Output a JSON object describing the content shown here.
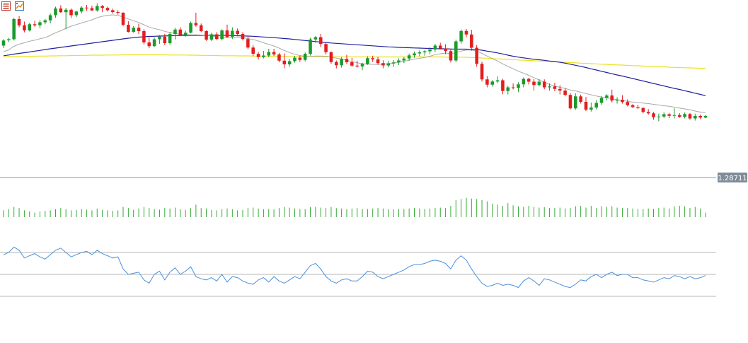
{
  "toolbar": {
    "items": [
      {
        "icon": "list-view-icon",
        "color": "#c0392b"
      },
      {
        "icon": "chart-window-icon",
        "color": "#2d6fb5"
      }
    ]
  },
  "colors": {
    "bull": "#1b9a2c",
    "bear": "#e31d1d",
    "ma_fast": "#a8a8a8",
    "ma_mid": "#1f1fa0",
    "ma_slow": "#ece01a",
    "volume": "#33aa33",
    "rsi": "#4a90d9",
    "grid": "#b5b5b5",
    "price_tag_bg": "#7f8c99"
  },
  "chart_data": {
    "type": "candlestick",
    "current_price": "1.28711",
    "candles": [
      [
        0.742,
        0.778,
        0.728,
        0.771
      ],
      [
        0.772,
        0.786,
        0.762,
        0.778
      ],
      [
        0.778,
        0.9,
        0.771,
        0.892
      ],
      [
        0.892,
        0.908,
        0.846,
        0.857
      ],
      [
        0.857,
        0.878,
        0.817,
        0.828
      ],
      [
        0.828,
        0.871,
        0.822,
        0.863
      ],
      [
        0.863,
        0.883,
        0.849,
        0.857
      ],
      [
        0.857,
        0.887,
        0.839,
        0.874
      ],
      [
        0.874,
        0.892,
        0.863,
        0.885
      ],
      [
        0.885,
        0.925,
        0.868,
        0.914
      ],
      [
        0.914,
        0.962,
        0.9,
        0.952
      ],
      [
        0.952,
        0.97,
        0.928,
        0.931
      ],
      [
        0.931,
        0.956,
        0.834,
        0.945
      ],
      [
        0.945,
        0.952,
        0.899,
        0.914
      ],
      [
        0.914,
        0.938,
        0.903,
        0.935
      ],
      [
        0.935,
        0.966,
        0.924,
        0.957
      ],
      [
        0.957,
        0.972,
        0.938,
        0.954
      ],
      [
        0.954,
        0.968,
        0.938,
        0.941
      ],
      [
        0.941,
        0.981,
        0.934,
        0.966
      ],
      [
        0.966,
        0.972,
        0.931,
        0.955
      ],
      [
        0.955,
        0.962,
        0.935,
        0.942
      ],
      [
        0.942,
        0.951,
        0.923,
        0.932
      ],
      [
        0.932,
        0.942,
        0.917,
        0.928
      ],
      [
        0.928,
        0.931,
        0.852,
        0.86
      ],
      [
        0.86,
        0.88,
        0.816,
        0.82
      ],
      [
        0.82,
        0.852,
        0.815,
        0.843
      ],
      [
        0.843,
        0.866,
        0.807,
        0.824
      ],
      [
        0.824,
        0.835,
        0.749,
        0.76
      ],
      [
        0.76,
        0.787,
        0.727,
        0.739
      ],
      [
        0.739,
        0.788,
        0.734,
        0.778
      ],
      [
        0.778,
        0.802,
        0.752,
        0.793
      ],
      [
        0.793,
        0.809,
        0.745,
        0.756
      ],
      [
        0.756,
        0.819,
        0.747,
        0.808
      ],
      [
        0.808,
        0.842,
        0.777,
        0.833
      ],
      [
        0.833,
        0.846,
        0.798,
        0.802
      ],
      [
        0.802,
        0.827,
        0.791,
        0.815
      ],
      [
        0.815,
        0.878,
        0.811,
        0.87
      ],
      [
        0.87,
        0.928,
        0.849,
        0.857
      ],
      [
        0.857,
        0.867,
        0.818,
        0.824
      ],
      [
        0.824,
        0.828,
        0.769,
        0.776
      ],
      [
        0.776,
        0.815,
        0.768,
        0.806
      ],
      [
        0.806,
        0.818,
        0.773,
        0.779
      ],
      [
        0.779,
        0.834,
        0.771,
        0.828
      ],
      [
        0.828,
        0.861,
        0.784,
        0.791
      ],
      [
        0.791,
        0.846,
        0.779,
        0.826
      ],
      [
        0.826,
        0.839,
        0.795,
        0.808
      ],
      [
        0.808,
        0.818,
        0.771,
        0.779
      ],
      [
        0.779,
        0.799,
        0.721,
        0.731
      ],
      [
        0.731,
        0.745,
        0.682,
        0.696
      ],
      [
        0.696,
        0.706,
        0.663,
        0.677
      ],
      [
        0.677,
        0.712,
        0.67,
        0.686
      ],
      [
        0.686,
        0.724,
        0.676,
        0.706
      ],
      [
        0.706,
        0.724,
        0.684,
        0.692
      ],
      [
        0.692,
        0.701,
        0.648,
        0.657
      ],
      [
        0.657,
        0.698,
        0.614,
        0.636
      ],
      [
        0.636,
        0.667,
        0.622,
        0.654
      ],
      [
        0.654,
        0.684,
        0.645,
        0.674
      ],
      [
        0.674,
        0.685,
        0.65,
        0.661
      ],
      [
        0.661,
        0.703,
        0.652,
        0.696
      ],
      [
        0.696,
        0.786,
        0.686,
        0.777
      ],
      [
        0.777,
        0.796,
        0.758,
        0.79
      ],
      [
        0.79,
        0.808,
        0.733,
        0.751
      ],
      [
        0.751,
        0.76,
        0.692,
        0.705
      ],
      [
        0.705,
        0.709,
        0.64,
        0.649
      ],
      [
        0.649,
        0.658,
        0.613,
        0.631
      ],
      [
        0.631,
        0.677,
        0.618,
        0.667
      ],
      [
        0.667,
        0.69,
        0.637,
        0.648
      ],
      [
        0.648,
        0.672,
        0.621,
        0.629
      ],
      [
        0.629,
        0.657,
        0.618,
        0.624
      ],
      [
        0.624,
        0.645,
        0.603,
        0.638
      ],
      [
        0.638,
        0.682,
        0.633,
        0.671
      ],
      [
        0.671,
        0.685,
        0.649,
        0.664
      ],
      [
        0.664,
        0.678,
        0.635,
        0.643
      ],
      [
        0.643,
        0.659,
        0.614,
        0.63
      ],
      [
        0.63,
        0.656,
        0.619,
        0.641
      ],
      [
        0.641,
        0.66,
        0.621,
        0.647
      ],
      [
        0.647,
        0.67,
        0.632,
        0.658
      ],
      [
        0.658,
        0.678,
        0.643,
        0.669
      ],
      [
        0.669,
        0.697,
        0.656,
        0.687
      ],
      [
        0.687,
        0.709,
        0.673,
        0.698
      ],
      [
        0.698,
        0.715,
        0.681,
        0.704
      ],
      [
        0.704,
        0.716,
        0.685,
        0.71
      ],
      [
        0.71,
        0.733,
        0.693,
        0.72
      ],
      [
        0.72,
        0.752,
        0.706,
        0.742
      ],
      [
        0.742,
        0.758,
        0.72,
        0.726
      ],
      [
        0.726,
        0.75,
        0.693,
        0.711
      ],
      [
        0.711,
        0.725,
        0.647,
        0.658
      ],
      [
        0.658,
        0.776,
        0.648,
        0.766
      ],
      [
        0.766,
        0.834,
        0.753,
        0.825
      ],
      [
        0.825,
        0.836,
        0.79,
        0.805
      ],
      [
        0.805,
        0.831,
        0.713,
        0.73
      ],
      [
        0.73,
        0.745,
        0.622,
        0.639
      ],
      [
        0.639,
        0.651,
        0.539,
        0.551
      ],
      [
        0.551,
        0.57,
        0.506,
        0.521
      ],
      [
        0.521,
        0.547,
        0.51,
        0.539
      ],
      [
        0.539,
        0.568,
        0.53,
        0.546
      ],
      [
        0.546,
        0.555,
        0.467,
        0.485
      ],
      [
        0.485,
        0.515,
        0.466,
        0.506
      ],
      [
        0.506,
        0.528,
        0.494,
        0.503
      ],
      [
        0.503,
        0.535,
        0.479,
        0.523
      ],
      [
        0.523,
        0.562,
        0.506,
        0.554
      ],
      [
        0.554,
        0.56,
        0.522,
        0.538
      ],
      [
        0.538,
        0.552,
        0.488,
        0.519
      ],
      [
        0.519,
        0.552,
        0.511,
        0.538
      ],
      [
        0.538,
        0.551,
        0.495,
        0.506
      ],
      [
        0.506,
        0.528,
        0.488,
        0.511
      ],
      [
        0.511,
        0.532,
        0.484,
        0.497
      ],
      [
        0.497,
        0.518,
        0.466,
        0.488
      ],
      [
        0.488,
        0.502,
        0.455,
        0.463
      ],
      [
        0.463,
        0.474,
        0.381,
        0.387
      ],
      [
        0.387,
        0.472,
        0.379,
        0.455
      ],
      [
        0.455,
        0.465,
        0.414,
        0.424
      ],
      [
        0.424,
        0.451,
        0.371,
        0.38
      ],
      [
        0.38,
        0.42,
        0.369,
        0.392
      ],
      [
        0.392,
        0.434,
        0.381,
        0.418
      ],
      [
        0.418,
        0.457,
        0.407,
        0.446
      ],
      [
        0.446,
        0.467,
        0.432,
        0.46
      ],
      [
        0.46,
        0.493,
        0.421,
        0.431
      ],
      [
        0.431,
        0.45,
        0.414,
        0.436
      ],
      [
        0.436,
        0.462,
        0.414,
        0.423
      ],
      [
        0.423,
        0.438,
        0.398,
        0.405
      ],
      [
        0.405,
        0.411,
        0.389,
        0.394
      ],
      [
        0.394,
        0.408,
        0.383,
        0.389
      ],
      [
        0.389,
        0.394,
        0.359,
        0.367
      ],
      [
        0.367,
        0.383,
        0.351,
        0.359
      ],
      [
        0.359,
        0.366,
        0.323,
        0.337
      ],
      [
        0.337,
        0.357,
        0.314,
        0.341
      ],
      [
        0.341,
        0.364,
        0.333,
        0.354
      ],
      [
        0.354,
        0.362,
        0.332,
        0.345
      ],
      [
        0.345,
        0.387,
        0.33,
        0.349
      ],
      [
        0.349,
        0.36,
        0.333,
        0.339
      ],
      [
        0.339,
        0.364,
        0.33,
        0.355
      ],
      [
        0.355,
        0.361,
        0.323,
        0.33
      ],
      [
        0.33,
        0.357,
        0.318,
        0.344
      ],
      [
        0.344,
        0.352,
        0.326,
        0.335
      ],
      [
        0.335,
        0.349,
        0.331,
        0.344
      ]
    ],
    "ma_fast": [
      0.708,
      0.718,
      0.738,
      0.75,
      0.758,
      0.767,
      0.773,
      0.781,
      0.787,
      0.8,
      0.815,
      0.826,
      0.84,
      0.852,
      0.861,
      0.87,
      0.879,
      0.888,
      0.9,
      0.908,
      0.913,
      0.916,
      0.913,
      0.904,
      0.893,
      0.883,
      0.873,
      0.86,
      0.847,
      0.839,
      0.832,
      0.823,
      0.816,
      0.81,
      0.807,
      0.804,
      0.803,
      0.803,
      0.802,
      0.8,
      0.796,
      0.792,
      0.79,
      0.789,
      0.789,
      0.789,
      0.787,
      0.782,
      0.777,
      0.768,
      0.758,
      0.749,
      0.74,
      0.728,
      0.715,
      0.703,
      0.693,
      0.686,
      0.681,
      0.681,
      0.683,
      0.683,
      0.682,
      0.678,
      0.671,
      0.666,
      0.659,
      0.652,
      0.645,
      0.64,
      0.637,
      0.636,
      0.635,
      0.637,
      0.641,
      0.644,
      0.648,
      0.653,
      0.66,
      0.666,
      0.67,
      0.675,
      0.682,
      0.691,
      0.696,
      0.7,
      0.697,
      0.702,
      0.711,
      0.717,
      0.717,
      0.711,
      0.698,
      0.683,
      0.669,
      0.655,
      0.639,
      0.625,
      0.611,
      0.597,
      0.586,
      0.574,
      0.561,
      0.548,
      0.534,
      0.523,
      0.513,
      0.506,
      0.5,
      0.491,
      0.486,
      0.478,
      0.471,
      0.464,
      0.457,
      0.451,
      0.447,
      0.442,
      0.436,
      0.432,
      0.427,
      0.423,
      0.42,
      0.417,
      0.414,
      0.41,
      0.406,
      0.402,
      0.399,
      0.394,
      0.389,
      0.384,
      0.379,
      0.372,
      0.366,
      0.363
    ],
    "ma_mid": [
      0.685,
      0.689,
      0.694,
      0.698,
      0.702,
      0.706,
      0.711,
      0.715,
      0.72,
      0.724,
      0.728,
      0.732,
      0.736,
      0.74,
      0.744,
      0.748,
      0.752,
      0.756,
      0.76,
      0.764,
      0.768,
      0.772,
      0.776,
      0.78,
      0.784,
      0.787,
      0.79,
      0.792,
      0.794,
      0.795,
      0.796,
      0.797,
      0.798,
      0.799,
      0.799,
      0.8,
      0.8,
      0.8,
      0.8,
      0.8,
      0.8,
      0.8,
      0.8,
      0.8,
      0.799,
      0.798,
      0.797,
      0.796,
      0.795,
      0.793,
      0.791,
      0.789,
      0.787,
      0.785,
      0.782,
      0.78,
      0.777,
      0.774,
      0.771,
      0.768,
      0.765,
      0.762,
      0.76,
      0.757,
      0.755,
      0.753,
      0.751,
      0.749,
      0.747,
      0.745,
      0.743,
      0.741,
      0.739,
      0.737,
      0.735,
      0.734,
      0.732,
      0.731,
      0.73,
      0.729,
      0.728,
      0.727,
      0.726,
      0.725,
      0.724,
      0.724,
      0.723,
      0.722,
      0.722,
      0.722,
      0.721,
      0.72,
      0.716,
      0.711,
      0.706,
      0.701,
      0.695,
      0.688,
      0.682,
      0.677,
      0.673,
      0.669,
      0.665,
      0.662,
      0.659,
      0.655,
      0.652,
      0.648,
      0.643,
      0.637,
      0.631,
      0.625,
      0.618,
      0.611,
      0.604,
      0.597,
      0.59,
      0.583,
      0.576,
      0.57,
      0.563,
      0.556,
      0.549,
      0.542,
      0.535,
      0.528,
      0.521,
      0.514,
      0.507,
      0.5,
      0.494,
      0.487,
      0.48,
      0.473,
      0.466,
      0.459
    ],
    "ma_slow": [
      0.679,
      0.68,
      0.68,
      0.681,
      0.681,
      0.682,
      0.682,
      0.683,
      0.683,
      0.684,
      0.684,
      0.685,
      0.685,
      0.686,
      0.686,
      0.687,
      0.687,
      0.688,
      0.688,
      0.688,
      0.689,
      0.689,
      0.689,
      0.69,
      0.69,
      0.69,
      0.69,
      0.69,
      0.69,
      0.69,
      0.69,
      0.69,
      0.689,
      0.689,
      0.689,
      0.689,
      0.688,
      0.688,
      0.687,
      0.687,
      0.686,
      0.686,
      0.685,
      0.685,
      0.685,
      0.684,
      0.684,
      0.684,
      0.683,
      0.683,
      0.683,
      0.682,
      0.682,
      0.682,
      0.681,
      0.681,
      0.681,
      0.68,
      0.68,
      0.68,
      0.68,
      0.679,
      0.679,
      0.679,
      0.679,
      0.679,
      0.679,
      0.678,
      0.678,
      0.678,
      0.678,
      0.678,
      0.678,
      0.678,
      0.678,
      0.678,
      0.678,
      0.678,
      0.678,
      0.678,
      0.678,
      0.678,
      0.678,
      0.678,
      0.678,
      0.677,
      0.677,
      0.677,
      0.677,
      0.676,
      0.675,
      0.674,
      0.672,
      0.671,
      0.669,
      0.667,
      0.666,
      0.664,
      0.663,
      0.661,
      0.66,
      0.658,
      0.657,
      0.655,
      0.654,
      0.652,
      0.651,
      0.649,
      0.648,
      0.646,
      0.645,
      0.643,
      0.642,
      0.64,
      0.639,
      0.637,
      0.636,
      0.634,
      0.633,
      0.632,
      0.63,
      0.629,
      0.628,
      0.626,
      0.625,
      0.624,
      0.623,
      0.622,
      0.62,
      0.619,
      0.618,
      0.617,
      0.616,
      0.615,
      0.614,
      0.613
    ],
    "volume": [
      0.3,
      0.35,
      0.45,
      0.4,
      0.3,
      0.25,
      0.2,
      0.25,
      0.28,
      0.3,
      0.35,
      0.4,
      0.35,
      0.3,
      0.32,
      0.35,
      0.33,
      0.3,
      0.38,
      0.32,
      0.3,
      0.28,
      0.3,
      0.45,
      0.4,
      0.32,
      0.38,
      0.45,
      0.4,
      0.35,
      0.33,
      0.4,
      0.38,
      0.42,
      0.35,
      0.32,
      0.4,
      0.55,
      0.4,
      0.38,
      0.32,
      0.3,
      0.35,
      0.38,
      0.35,
      0.3,
      0.32,
      0.4,
      0.42,
      0.38,
      0.35,
      0.36,
      0.34,
      0.4,
      0.45,
      0.42,
      0.38,
      0.35,
      0.35,
      0.45,
      0.45,
      0.42,
      0.4,
      0.45,
      0.4,
      0.38,
      0.35,
      0.38,
      0.4,
      0.35,
      0.36,
      0.38,
      0.4,
      0.38,
      0.35,
      0.34,
      0.36,
      0.35,
      0.38,
      0.4,
      0.38,
      0.36,
      0.38,
      0.4,
      0.42,
      0.4,
      0.5,
      0.75,
      0.8,
      0.85,
      0.82,
      0.8,
      0.75,
      0.7,
      0.6,
      0.55,
      0.5,
      0.62,
      0.52,
      0.48,
      0.45,
      0.5,
      0.45,
      0.42,
      0.44,
      0.4,
      0.4,
      0.42,
      0.38,
      0.4,
      0.48,
      0.5,
      0.42,
      0.5,
      0.4,
      0.48,
      0.45,
      0.48,
      0.42,
      0.4,
      0.4,
      0.38,
      0.36,
      0.35,
      0.38,
      0.36,
      0.4,
      0.42,
      0.38,
      0.48,
      0.5,
      0.48,
      0.4,
      0.45,
      0.38,
      0.2
    ],
    "rsi": [
      68,
      70,
      75,
      72,
      65,
      67,
      69,
      66,
      64,
      68,
      72,
      74,
      70,
      66,
      68,
      70,
      71,
      68,
      72,
      69,
      67,
      65,
      66,
      55,
      50,
      51,
      52,
      45,
      42,
      50,
      53,
      45,
      52,
      56,
      50,
      53,
      57,
      48,
      46,
      45,
      47,
      44,
      50,
      43,
      48,
      47,
      44,
      42,
      41,
      45,
      47,
      43,
      48,
      44,
      42,
      45,
      48,
      46,
      52,
      58,
      60,
      55,
      48,
      44,
      42,
      45,
      46,
      44,
      44,
      48,
      53,
      52,
      48,
      46,
      48,
      50,
      52,
      54,
      57,
      59,
      59,
      60,
      62,
      63,
      62,
      60,
      55,
      63,
      67,
      63,
      55,
      48,
      42,
      39,
      40,
      42,
      40,
      41,
      40,
      38,
      44,
      47,
      44,
      40,
      46,
      45,
      43,
      41,
      39,
      38,
      41,
      45,
      44,
      48,
      50,
      47,
      50,
      52,
      49,
      50,
      50,
      47,
      47,
      45,
      44,
      43,
      45,
      47,
      46,
      49,
      48,
      46,
      48,
      46,
      47,
      49
    ]
  }
}
